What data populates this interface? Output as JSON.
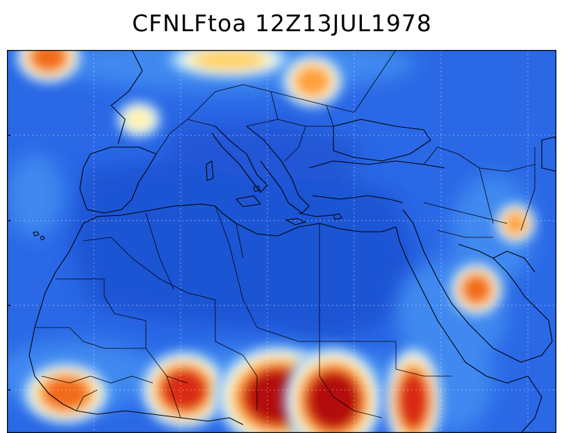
{
  "title": "CFNLFtoa 12Z13JUL1978",
  "map": {
    "background_color": "#2060e0",
    "palette": [
      "#1d4fc9",
      "#2a68e6",
      "#3f89f0",
      "#6bb0f4",
      "#a9d8f7",
      "#e8f4f4",
      "#fff4b0",
      "#ffd36a",
      "#ffa03c",
      "#f26a1f",
      "#d92a12",
      "#b30b08"
    ],
    "hotspots": [
      {
        "name": "iberia-cell",
        "level": 6
      },
      {
        "name": "central-europe-cell",
        "level": 7
      },
      {
        "name": "balkan-cell",
        "level": 8
      },
      {
        "name": "northwest-corner-cell",
        "level": 9
      },
      {
        "name": "yemen-cell",
        "level": 9
      },
      {
        "name": "persian-gulf-cell",
        "level": 8
      },
      {
        "name": "guinea-cell",
        "level": 9
      },
      {
        "name": "west-sahel-cell",
        "level": 10
      },
      {
        "name": "chad-cell",
        "level": 11
      },
      {
        "name": "sudan-cell",
        "level": 11
      },
      {
        "name": "ethiopia-cell",
        "level": 10
      }
    ]
  }
}
